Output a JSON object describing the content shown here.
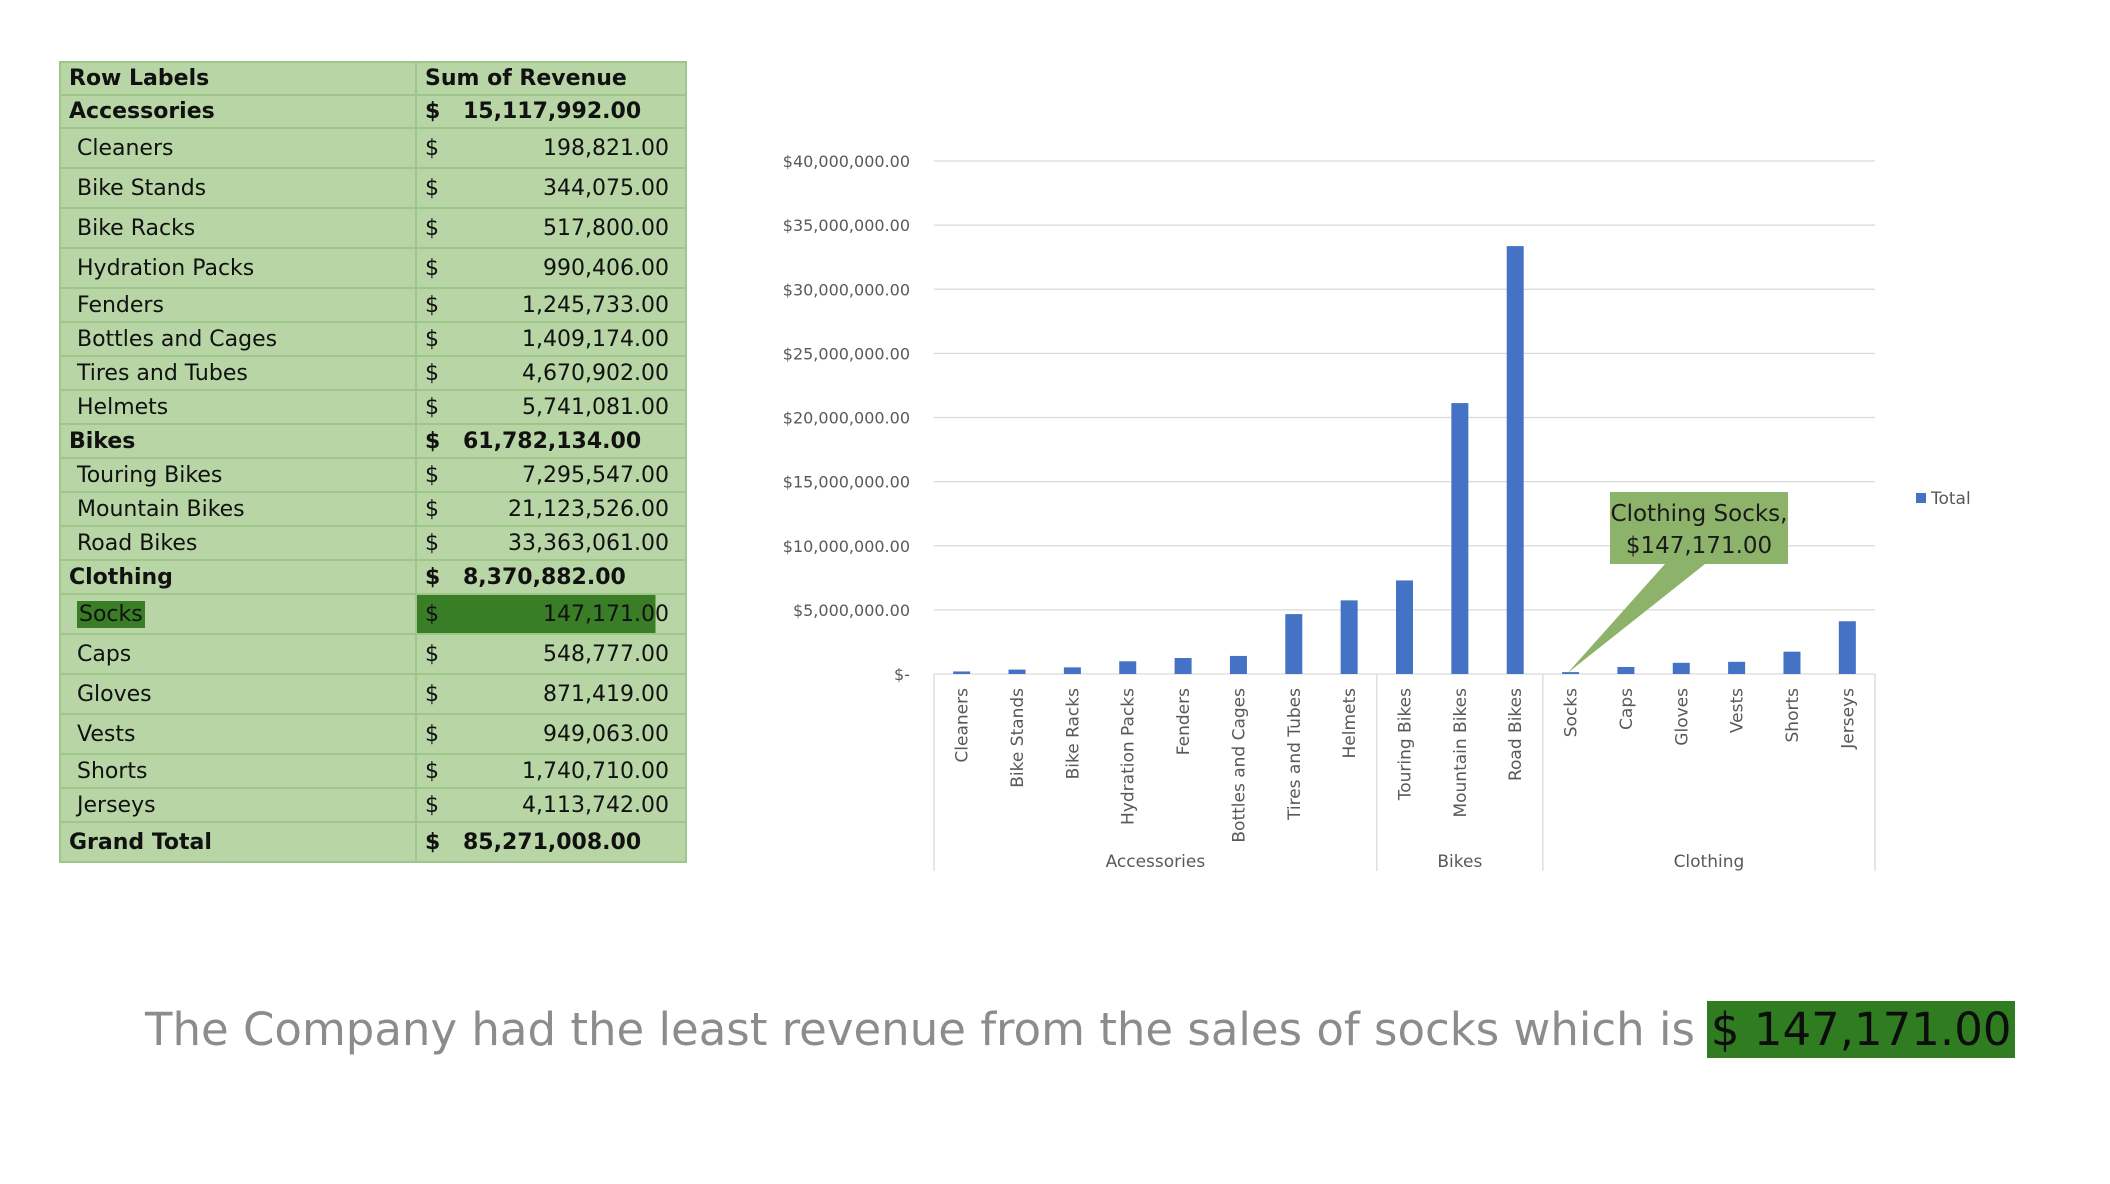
{
  "pivot": {
    "headers": {
      "row_labels": "Row Labels",
      "sum_of_revenue": "Sum of Revenue"
    },
    "currency_symbol": "$",
    "rows": [
      {
        "type": "cat",
        "label": "Accessories",
        "value": "15,117,992.00"
      },
      {
        "type": "item",
        "label": "Cleaners",
        "value": "198,821.00"
      },
      {
        "type": "item",
        "label": "Bike Stands",
        "value": "344,075.00"
      },
      {
        "type": "item",
        "label": "Bike Racks",
        "value": "517,800.00"
      },
      {
        "type": "item",
        "label": "Hydration Packs",
        "value": "990,406.00"
      },
      {
        "type": "item",
        "label": "Fenders",
        "value": "1,245,733.00"
      },
      {
        "type": "item",
        "label": "Bottles and Cages",
        "value": "1,409,174.00"
      },
      {
        "type": "item",
        "label": "Tires and Tubes",
        "value": "4,670,902.00"
      },
      {
        "type": "item",
        "label": "Helmets",
        "value": "5,741,081.00"
      },
      {
        "type": "cat",
        "label": "Bikes",
        "value": "61,782,134.00"
      },
      {
        "type": "item",
        "label": "Touring Bikes",
        "value": "7,295,547.00"
      },
      {
        "type": "item",
        "label": "Mountain Bikes",
        "value": "21,123,526.00"
      },
      {
        "type": "item",
        "label": "Road Bikes",
        "value": "33,363,061.00"
      },
      {
        "type": "cat",
        "label": "Clothing",
        "value": "8,370,882.00"
      },
      {
        "type": "item",
        "label": "Socks",
        "value": "147,171.00",
        "highlight": true
      },
      {
        "type": "item",
        "label": "Caps",
        "value": "548,777.00"
      },
      {
        "type": "item",
        "label": "Gloves",
        "value": "871,419.00"
      },
      {
        "type": "item",
        "label": "Vests",
        "value": "949,063.00"
      },
      {
        "type": "item",
        "label": "Shorts",
        "value": "1,740,710.00"
      },
      {
        "type": "item",
        "label": "Jerseys",
        "value": "4,113,742.00"
      },
      {
        "type": "total",
        "label": "Grand Total",
        "value": "85,271,008.00"
      }
    ]
  },
  "chart_data": {
    "type": "bar",
    "title": "",
    "xlabel": "",
    "ylabel": "",
    "ylim": [
      0,
      40000000
    ],
    "yticks": [
      0,
      5000000,
      10000000,
      15000000,
      20000000,
      25000000,
      30000000,
      35000000,
      40000000
    ],
    "ytick_labels": [
      "$-",
      "$5,000,000.00",
      "$10,000,000.00",
      "$15,000,000.00",
      "$20,000,000.00",
      "$25,000,000.00",
      "$30,000,000.00",
      "$35,000,000.00",
      "$40,000,000.00"
    ],
    "grid": true,
    "legend": {
      "position": "right",
      "entries": [
        "Total"
      ]
    },
    "groups": [
      {
        "name": "Accessories",
        "categories": [
          "Cleaners",
          "Bike Stands",
          "Bike Racks",
          "Hydration Packs",
          "Fenders",
          "Bottles and Cages",
          "Tires and Tubes",
          "Helmets"
        ]
      },
      {
        "name": "Bikes",
        "categories": [
          "Touring Bikes",
          "Mountain Bikes",
          "Road Bikes"
        ]
      },
      {
        "name": "Clothing",
        "categories": [
          "Socks",
          "Caps",
          "Gloves",
          "Vests",
          "Shorts",
          "Jerseys"
        ]
      }
    ],
    "series": [
      {
        "name": "Total",
        "color": "#4472c4",
        "values": [
          198821,
          344075,
          517800,
          990406,
          1245733,
          1409174,
          4670902,
          5741081,
          7295547,
          21123526,
          33363061,
          147171,
          548777,
          871419,
          949063,
          1740710,
          4113742
        ]
      }
    ],
    "annotation": {
      "category": "Socks",
      "line1": "Clothing Socks,",
      "line2": "$147,171.00",
      "color": "#8db36a"
    }
  },
  "statement": {
    "text": "The Company had the least revenue from the sales of socks which is",
    "highlight": "$ 147,171.00"
  },
  "colors": {
    "table_bg": "#b7d5a5",
    "highlight_green": "#3a7d27",
    "bar_blue": "#4472c4"
  }
}
